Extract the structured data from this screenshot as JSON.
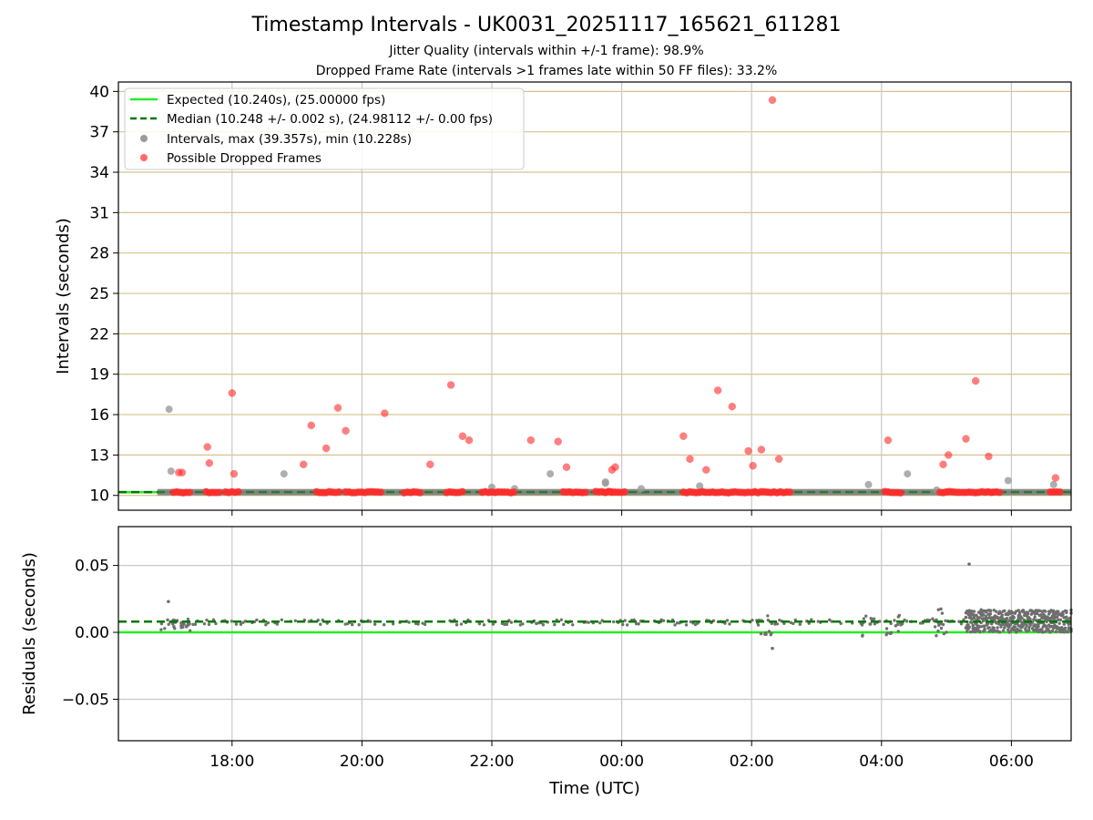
{
  "chart_data": [
    {
      "type": "scatter",
      "title": "Timestamp Intervals - UK0031_20251117_165621_611281",
      "subtitle_lines": [
        "Jitter Quality (intervals within +/-1 frame): 98.9%",
        "Dropped Frame Rate (intervals >1 frames late within 50 FF files): 33.2%"
      ],
      "xlabel": "",
      "ylabel": "Intervals (seconds)",
      "x_unit": "hours since 00:00 UTC (negative = previous day)",
      "xlim": [
        -7.75,
        6.92
      ],
      "ylim": [
        8.9,
        40.7
      ],
      "yticks": [
        10,
        13,
        16,
        19,
        22,
        25,
        28,
        31,
        34,
        37,
        40
      ],
      "ytick_labels": [
        "10",
        "13",
        "16",
        "19",
        "22",
        "25",
        "28",
        "31",
        "34",
        "37",
        "40"
      ],
      "grid": true,
      "legend_position": "top-left",
      "legend": [
        "Expected (10.240s), (25.00000 fps)",
        "Median (10.248 +/- 0.002 s), (24.98112 +/- 0.00 fps)",
        "Intervals, max (39.357s), min (10.228s)",
        "Possible Dropped Frames"
      ],
      "colors": {
        "expected": "#22ee22",
        "median": "#007700",
        "intervals": "#9a9a9a",
        "dropped": "#ff2a2a",
        "hgrid": "#d8c28a",
        "vgrid": "#c8c8c8"
      },
      "expected_interval": 10.24,
      "median_interval": 10.248,
      "baseline_start": -7.15,
      "dropped_clusters": [
        [
          -6.9,
          -6.65
        ],
        [
          -6.4,
          -6.2
        ],
        [
          -6.1,
          -5.9
        ],
        [
          -4.7,
          -4.35
        ],
        [
          -4.25,
          -3.7
        ],
        [
          -3.35,
          -3.1
        ],
        [
          -2.7,
          -2.45
        ],
        [
          -2.15,
          -1.65
        ],
        [
          -0.4,
          -0.15
        ],
        [
          -0.9,
          -0.55
        ],
        [
          -0.25,
          0.05
        ],
        [
          0.95,
          1.3
        ],
        [
          1.35,
          1.75
        ],
        [
          1.8,
          1.95
        ],
        [
          2.0,
          2.6
        ],
        [
          4.05,
          4.3
        ],
        [
          4.9,
          5.2
        ],
        [
          5.25,
          5.7
        ],
        [
          5.72,
          5.85
        ],
        [
          6.6,
          6.75
        ]
      ],
      "dropped_points": [
        {
          "x": -6.82,
          "y": 11.7
        },
        {
          "x": -6.77,
          "y": 11.7
        },
        {
          "x": -6.38,
          "y": 13.6
        },
        {
          "x": -6.35,
          "y": 12.4
        },
        {
          "x": -6.0,
          "y": 17.6
        },
        {
          "x": -5.97,
          "y": 11.6
        },
        {
          "x": -4.9,
          "y": 12.3
        },
        {
          "x": -4.78,
          "y": 15.2
        },
        {
          "x": -4.55,
          "y": 13.5
        },
        {
          "x": -4.37,
          "y": 16.5
        },
        {
          "x": -4.25,
          "y": 14.8
        },
        {
          "x": -3.65,
          "y": 16.1
        },
        {
          "x": -2.95,
          "y": 12.3
        },
        {
          "x": -2.63,
          "y": 18.2
        },
        {
          "x": -2.45,
          "y": 14.4
        },
        {
          "x": -2.35,
          "y": 14.1
        },
        {
          "x": -1.4,
          "y": 14.1
        },
        {
          "x": -0.98,
          "y": 14.0
        },
        {
          "x": -0.85,
          "y": 12.1
        },
        {
          "x": -0.15,
          "y": 11.9
        },
        {
          "x": -0.1,
          "y": 12.1
        },
        {
          "x": 0.95,
          "y": 14.4
        },
        {
          "x": 1.05,
          "y": 12.7
        },
        {
          "x": 1.3,
          "y": 11.9
        },
        {
          "x": 1.48,
          "y": 17.8
        },
        {
          "x": 1.7,
          "y": 16.6
        },
        {
          "x": 1.95,
          "y": 13.3
        },
        {
          "x": 2.02,
          "y": 12.2
        },
        {
          "x": 2.15,
          "y": 13.4
        },
        {
          "x": 2.32,
          "y": 39.36
        },
        {
          "x": 2.42,
          "y": 12.7
        },
        {
          "x": 4.1,
          "y": 14.1
        },
        {
          "x": 4.95,
          "y": 12.3
        },
        {
          "x": 5.03,
          "y": 13.0
        },
        {
          "x": 5.3,
          "y": 14.2
        },
        {
          "x": 5.45,
          "y": 18.5
        },
        {
          "x": 5.65,
          "y": 12.9
        },
        {
          "x": 6.68,
          "y": 11.3
        }
      ],
      "interval_points": [
        {
          "x": -6.97,
          "y": 16.4
        },
        {
          "x": -6.94,
          "y": 11.8
        },
        {
          "x": -5.2,
          "y": 11.6
        },
        {
          "x": -0.25,
          "y": 11.0
        },
        {
          "x": -0.25,
          "y": 10.9
        },
        {
          "x": -2.0,
          "y": 10.6
        },
        {
          "x": -1.65,
          "y": 10.5
        },
        {
          "x": -1.1,
          "y": 11.6
        },
        {
          "x": 0.3,
          "y": 10.5
        },
        {
          "x": 1.2,
          "y": 10.7
        },
        {
          "x": 3.8,
          "y": 10.8
        },
        {
          "x": 4.4,
          "y": 11.6
        },
        {
          "x": 5.95,
          "y": 11.1
        },
        {
          "x": 6.65,
          "y": 10.8
        },
        {
          "x": 4.85,
          "y": 10.4
        }
      ]
    },
    {
      "type": "scatter",
      "xlabel": "Time (UTC)",
      "ylabel": "Residuals (seconds)",
      "xlim": [
        -7.75,
        6.92
      ],
      "ylim": [
        -0.081,
        0.079
      ],
      "yticks": [
        -0.05,
        0.0,
        0.05
      ],
      "ytick_labels": [
        "−0.05",
        "0.00",
        "0.05"
      ],
      "xticks": [
        -6,
        -4,
        -2,
        0,
        2,
        4,
        6
      ],
      "xtick_labels": [
        "18:00",
        "20:00",
        "22:00",
        "00:00",
        "02:00",
        "04:00",
        "06:00"
      ],
      "grid": true,
      "expected_residual": 0.0,
      "median_residual": 0.008,
      "notable_points": [
        {
          "x": -6.98,
          "y": 0.023
        },
        {
          "x": 5.35,
          "y": 0.051
        },
        {
          "x": 2.32,
          "y": -0.012
        }
      ],
      "dense_band": {
        "x_from": 5.3,
        "x_to": 6.92,
        "y_from": 0.0,
        "y_to": 0.017
      }
    }
  ]
}
